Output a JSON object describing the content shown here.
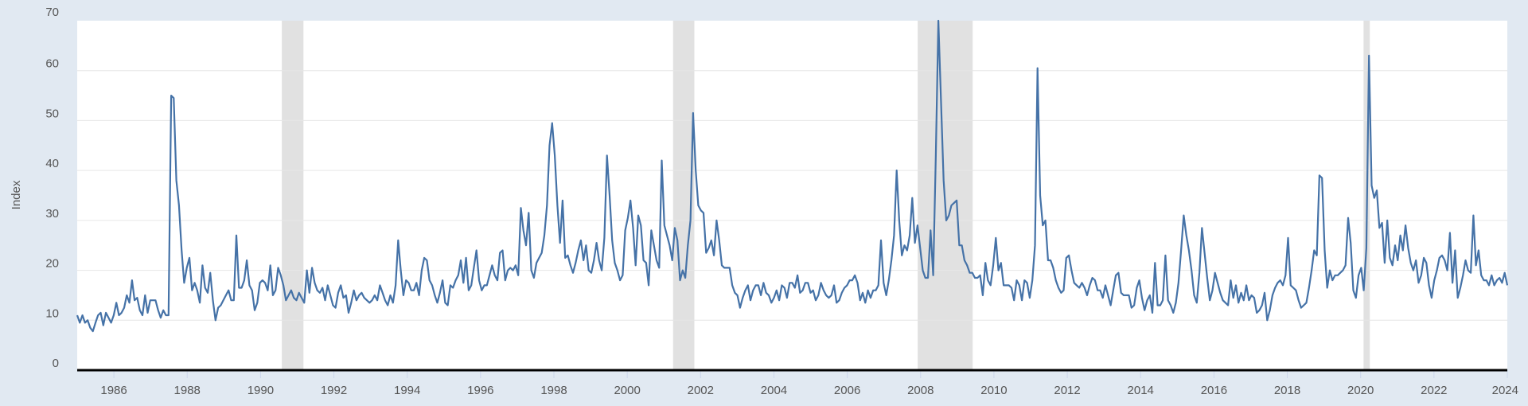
{
  "chart_data": {
    "type": "line",
    "title": "",
    "xlabel": "",
    "ylabel": "Index",
    "ylim": [
      0,
      70
    ],
    "xlim": [
      1985.0,
      2024.0
    ],
    "y_ticks": [
      0,
      10,
      20,
      30,
      40,
      50,
      60,
      70
    ],
    "x_ticks": [
      "1986",
      "1988",
      "1990",
      "1992",
      "1994",
      "1996",
      "1998",
      "2000",
      "2002",
      "2004",
      "2006",
      "2008",
      "2010",
      "2012",
      "2014",
      "2016",
      "2018",
      "2020",
      "2022",
      "2024"
    ],
    "grid": true,
    "legend": null,
    "line_color": "#4572a7",
    "recession_bands": [
      {
        "start": 1990.58,
        "end": 1991.17
      },
      {
        "start": 2001.25,
        "end": 2001.83
      },
      {
        "start": 2007.92,
        "end": 2009.42
      },
      {
        "start": 2020.08,
        "end": 2020.25
      }
    ],
    "series": [
      {
        "name": "Index",
        "start": "1985-01",
        "frequency": "monthly",
        "values": [
          11,
          9.5,
          11,
          9.5,
          10,
          8.5,
          7.8,
          9.5,
          11,
          11.5,
          9,
          11.5,
          10.5,
          9.5,
          11,
          13.5,
          11,
          11.5,
          12.5,
          15,
          13.5,
          18,
          14,
          14.5,
          12,
          11,
          15,
          11.5,
          14,
          14,
          14,
          12,
          10.5,
          12,
          11,
          11,
          55,
          54.5,
          38,
          33,
          24,
          17.5,
          20.5,
          22.5,
          16,
          17.5,
          16,
          13.5,
          21,
          16.5,
          15.5,
          19.5,
          14,
          10,
          12.5,
          13,
          14,
          15,
          16,
          14,
          14,
          27,
          16.5,
          16.5,
          18,
          22,
          17,
          16,
          12,
          13.5,
          17.5,
          18,
          17.5,
          16,
          21,
          15,
          16,
          20.5,
          19,
          17,
          14,
          15,
          16,
          14.5,
          14,
          15.5,
          14.5,
          13.5,
          20,
          15.5,
          20.5,
          17.5,
          16,
          15.5,
          16.5,
          14,
          17,
          15,
          13,
          12.5,
          15.5,
          17,
          14.5,
          15,
          11.5,
          13.5,
          16,
          14,
          15,
          15.5,
          14.5,
          14,
          13.5,
          14,
          15,
          14,
          17,
          15.5,
          14,
          13,
          15,
          13.5,
          17,
          26,
          20,
          15,
          18,
          17.5,
          16,
          16,
          17.5,
          15,
          20,
          22.5,
          22,
          18,
          17,
          15,
          13.5,
          15.5,
          18,
          13.5,
          13,
          17,
          16.5,
          18,
          19,
          22,
          17.5,
          22.5,
          16,
          17,
          20.5,
          24,
          18,
          16,
          17,
          17,
          19,
          21,
          19,
          18,
          23.5,
          24,
          18,
          20,
          20.5,
          20,
          21,
          19,
          32.5,
          28,
          25,
          31.5,
          20,
          18.5,
          21.5,
          22.5,
          23.5,
          27,
          33,
          45,
          49.5,
          43,
          33,
          25.5,
          34,
          22.5,
          23,
          21,
          19.5,
          21.5,
          24,
          26,
          22,
          25,
          20,
          19.5,
          22,
          25.5,
          22,
          20,
          26.5,
          43,
          35,
          26,
          21.5,
          20,
          18,
          19,
          28,
          30.5,
          34,
          28.5,
          21,
          31,
          29,
          22,
          21.5,
          17,
          28,
          25,
          22,
          20.5,
          42,
          29,
          27,
          25,
          22,
          28.5,
          26,
          18,
          20,
          18.5,
          25,
          30,
          51.5,
          40,
          33,
          32,
          31.5,
          23.5,
          24.5,
          26,
          23,
          30,
          26,
          21,
          20.5,
          20.5,
          20.5,
          17,
          15.5,
          15,
          12.5,
          14.5,
          16,
          17,
          14,
          16,
          17,
          17,
          15,
          17.5,
          15.5,
          15,
          13.5,
          14.5,
          16,
          14,
          17,
          16.5,
          14.5,
          17.5,
          17.5,
          16.5,
          19,
          15.5,
          16,
          17.5,
          17.5,
          15.5,
          16,
          14,
          15,
          17.5,
          16,
          15,
          14.5,
          15,
          17,
          13.5,
          14,
          15.5,
          16.5,
          17,
          18,
          18,
          19,
          17.5,
          14,
          15.5,
          13.5,
          16,
          14.5,
          16,
          16,
          17,
          26,
          17.5,
          15,
          18,
          22,
          27,
          40,
          30,
          23,
          25,
          24,
          27,
          34.5,
          25.5,
          29,
          24.5,
          20,
          18.5,
          18.5,
          28,
          19,
          43,
          70,
          54,
          38,
          30,
          31,
          33,
          33.5,
          34,
          25,
          25,
          22,
          21,
          19.5,
          19.5,
          18.5,
          18.5,
          19,
          15,
          21.5,
          18,
          17,
          21,
          26.5,
          20,
          21.5,
          17,
          17,
          17,
          16.5,
          14,
          18,
          17,
          14,
          18,
          17.5,
          14.5,
          18,
          25,
          60.5,
          35,
          29,
          30,
          22,
          22,
          20.5,
          18,
          16.5,
          15.5,
          16,
          22.5,
          23,
          20,
          17.5,
          17,
          16.5,
          17.5,
          16.5,
          15,
          17,
          18.5,
          18,
          16,
          16,
          14.5,
          17,
          15,
          13,
          16,
          19,
          19.5,
          15.5,
          15,
          15,
          15,
          12.5,
          13,
          16.5,
          18,
          14.5,
          12,
          14,
          15,
          11.5,
          21.5,
          13,
          13,
          14,
          23,
          14,
          13,
          11.5,
          13.5,
          17.5,
          24,
          31,
          27,
          24,
          20,
          15,
          13.5,
          19.5,
          28.5,
          23.5,
          18.5,
          14,
          16,
          19.5,
          17.5,
          15.5,
          14,
          13.5,
          13,
          18,
          14.5,
          17,
          13.5,
          15.5,
          14,
          17,
          14,
          15,
          14.5,
          11.5,
          12,
          13,
          15.5,
          10,
          12,
          15,
          16.5,
          17.5,
          18,
          17,
          19,
          26.5,
          17,
          16.5,
          16,
          14,
          12.5,
          13,
          13.5,
          16.5,
          20,
          24,
          23,
          39,
          38.5,
          24,
          16.5,
          20,
          18,
          19,
          19,
          19.5,
          20,
          21,
          30.5,
          25.5,
          16,
          14.5,
          19,
          20.5,
          16,
          24.5,
          63,
          37,
          34.5,
          36,
          28.5,
          29.5,
          21.5,
          30,
          22.5,
          21,
          25,
          22,
          27,
          24,
          29,
          24.5,
          21.5,
          20,
          22,
          17.5,
          19,
          22.5,
          21.5,
          17,
          14.5,
          18,
          20,
          22.5,
          23,
          22,
          20,
          27.5,
          17.5,
          24,
          14.5,
          16.5,
          19,
          22,
          20,
          19.5,
          31,
          21,
          24,
          19,
          18,
          18,
          17,
          19,
          17,
          18,
          18.5,
          17.5,
          19.5,
          17
        ]
      }
    ]
  }
}
